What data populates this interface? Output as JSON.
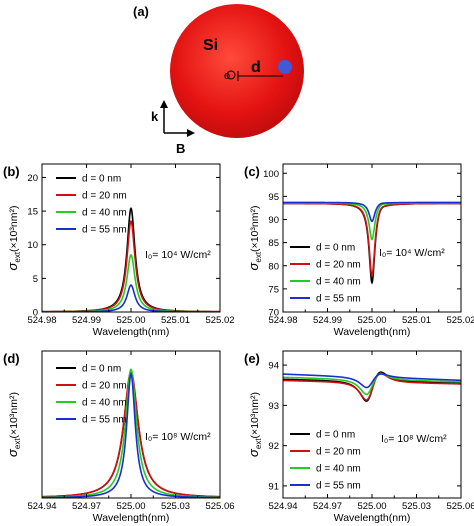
{
  "panels": {
    "a": {
      "label": "(a)",
      "sphere_label": "Si",
      "distance_label": "d",
      "origin_label": "o",
      "k_label": "k",
      "b_label": "B",
      "sphere_color": "#e01010",
      "dot_color": "#3d5bd9"
    }
  },
  "chart_data": [
    {
      "panel": "(b)",
      "type": "line",
      "xlabel": "Wavelength(nm)",
      "ylabel_prefix": "σ",
      "ylabel_sub": "ext",
      "ylabel_suffix": "(×10³nm²)",
      "xlim": [
        524.98,
        525.02
      ],
      "ylim": [
        0,
        22
      ],
      "xticks": [
        "524.98",
        "524.99",
        "525.00",
        "525.01",
        "525.02"
      ],
      "yticks": [
        "0",
        "5",
        "10",
        "15",
        "20"
      ],
      "annotation": "I₀= 10⁴ W/cm²",
      "shape": "peak",
      "center": 525.0,
      "series": [
        {
          "name": "d = 0 nm",
          "color": "#000000",
          "peak": 15.4,
          "baseline": 0.0,
          "halfwidth": 0.0011
        },
        {
          "name": "d = 20 nm",
          "color": "#d01010",
          "peak": 13.5,
          "baseline": 0.0,
          "halfwidth": 0.0011
        },
        {
          "name": "d = 40 nm",
          "color": "#22cc22",
          "peak": 8.5,
          "baseline": 0.0,
          "halfwidth": 0.0011
        },
        {
          "name": "d = 55 nm",
          "color": "#1a2fcf",
          "peak": 4.0,
          "baseline": 0.0,
          "halfwidth": 0.0011
        }
      ],
      "legend": "top-left"
    },
    {
      "panel": "(c)",
      "type": "line",
      "xlabel": "Wavelength(nm)",
      "ylabel_prefix": "σ",
      "ylabel_sub": "ext",
      "ylabel_suffix": "(×10³nm²)",
      "xlim": [
        524.98,
        525.02
      ],
      "ylim": [
        70,
        102
      ],
      "xticks": [
        "524.98",
        "524.99",
        "525.00",
        "525.01",
        "525.02"
      ],
      "yticks": [
        "70",
        "75",
        "80",
        "85",
        "90",
        "95",
        "100"
      ],
      "annotation": "I₀= 10⁴ W/cm²",
      "shape": "fano",
      "center": 525.0,
      "series": [
        {
          "name": "d = 0 nm",
          "color": "#000000",
          "dip": 76.0,
          "bump": 94.6,
          "baseline": 93.5
        },
        {
          "name": "d = 20 nm",
          "color": "#d01010",
          "dip": 77.5,
          "bump": 94.5,
          "baseline": 93.5
        },
        {
          "name": "d = 40 nm",
          "color": "#22cc22",
          "dip": 85.5,
          "bump": 94.2,
          "baseline": 93.6
        },
        {
          "name": "d = 55 nm",
          "color": "#1a2fcf",
          "dip": 89.5,
          "bump": 94.0,
          "baseline": 93.7
        }
      ],
      "legend": "bottom-left"
    },
    {
      "panel": "(d)",
      "type": "line",
      "xlabel": "Wavelength(nm)",
      "ylabel_prefix": "σ",
      "ylabel_sub": "ext",
      "ylabel_suffix": "(×10³nm²)",
      "xlim": [
        524.94,
        525.06
      ],
      "ylim": [
        0,
        0.32
      ],
      "xticks": [
        "524.94",
        "524.97",
        "525.00",
        "525.03",
        "525.06"
      ],
      "yticks": [],
      "annotation": "I₀= 10⁸ W/cm²",
      "shape": "peak",
      "center": 525.0,
      "series": [
        {
          "name": "d = 0 nm",
          "color": "#000000",
          "peak": 0.27,
          "baseline": 0.0,
          "halfwidth": 0.006
        },
        {
          "name": "d = 20 nm",
          "color": "#d01010",
          "peak": 0.275,
          "baseline": 0.0,
          "halfwidth": 0.006
        },
        {
          "name": "d = 40 nm",
          "color": "#22cc22",
          "peak": 0.28,
          "baseline": 0.0,
          "halfwidth": 0.0045
        },
        {
          "name": "d = 55 nm",
          "color": "#1a2fcf",
          "peak": 0.27,
          "baseline": 0.0,
          "halfwidth": 0.0035
        }
      ],
      "legend": "top-left"
    },
    {
      "panel": "(e)",
      "type": "line",
      "xlabel": "Wavelength(nm)",
      "ylabel_prefix": "σ",
      "ylabel_sub": "ext",
      "ylabel_suffix": "(×10³nm²)",
      "xlim": [
        524.94,
        525.06
      ],
      "ylim": [
        90.7,
        94.35
      ],
      "xticks": [
        "524.94",
        "524.97",
        "525.00",
        "525.03",
        "525.06"
      ],
      "yticks": [
        "91",
        "92",
        "93",
        "94"
      ],
      "annotation": "I₀= 10⁸ W/cm²",
      "shape": "fano_wide",
      "center": 525.0,
      "series": [
        {
          "name": "d = 0 nm",
          "color": "#000000",
          "left": 93.65,
          "dip": 92.88,
          "bump": 94.08,
          "right": 93.55
        },
        {
          "name": "d = 20 nm",
          "color": "#d01010",
          "left": 93.62,
          "dip": 92.92,
          "bump": 94.03,
          "right": 93.53
        },
        {
          "name": "d = 40 nm",
          "color": "#22cc22",
          "left": 93.7,
          "dip": 93.12,
          "bump": 93.97,
          "right": 93.58
        },
        {
          "name": "d = 55 nm",
          "color": "#1a2fcf",
          "left": 93.78,
          "dip": 93.35,
          "bump": 93.9,
          "right": 93.62
        }
      ],
      "legend": "bottom-left"
    }
  ]
}
